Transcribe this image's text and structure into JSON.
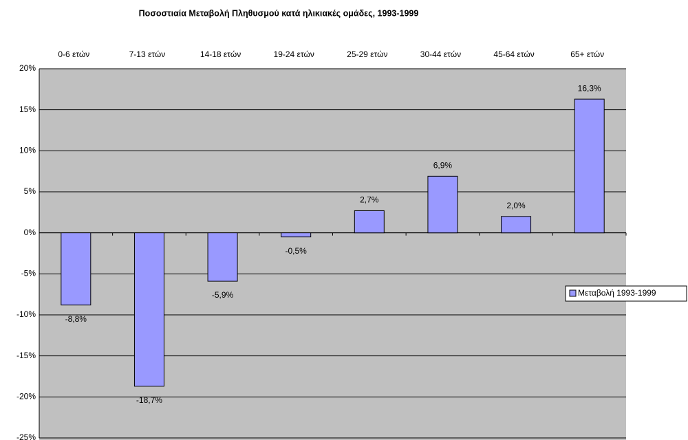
{
  "chart_data": {
    "type": "bar",
    "title": "Ποσοστιαία Μεταβολή Πληθυσμού κατά ηλικιακές ομάδες, 1993-1999",
    "categories": [
      "0-6 ετών",
      "7-13 ετών",
      "14-18 ετών",
      "19-24 ετών",
      "25-29 ετών",
      "30-44 ετών",
      "45-64 ετών",
      "65+ ετών"
    ],
    "series": [
      {
        "name": "Μεταβολή 1993-1999",
        "color": "#9999ff",
        "values": [
          -8.8,
          -18.7,
          -5.9,
          -0.5,
          2.7,
          6.9,
          2.0,
          16.3
        ],
        "value_labels": [
          "-8,8%",
          "-18,7%",
          "-5,9%",
          "-0,5%",
          "2,7%",
          "6,9%",
          "2,0%",
          "16,3%"
        ]
      }
    ],
    "ylim": [
      -25,
      20
    ],
    "yticks": [
      {
        "value": -25,
        "label": "-25%"
      },
      {
        "value": -20,
        "label": "-20%"
      },
      {
        "value": -15,
        "label": "-15%"
      },
      {
        "value": -10,
        "label": "-10%"
      },
      {
        "value": -5,
        "label": "-5%"
      },
      {
        "value": 0,
        "label": "0%"
      },
      {
        "value": 5,
        "label": "5%"
      },
      {
        "value": 10,
        "label": "10%"
      },
      {
        "value": 15,
        "label": "15%"
      },
      {
        "value": 20,
        "label": "20%"
      }
    ],
    "grid": true,
    "legend": "right"
  }
}
